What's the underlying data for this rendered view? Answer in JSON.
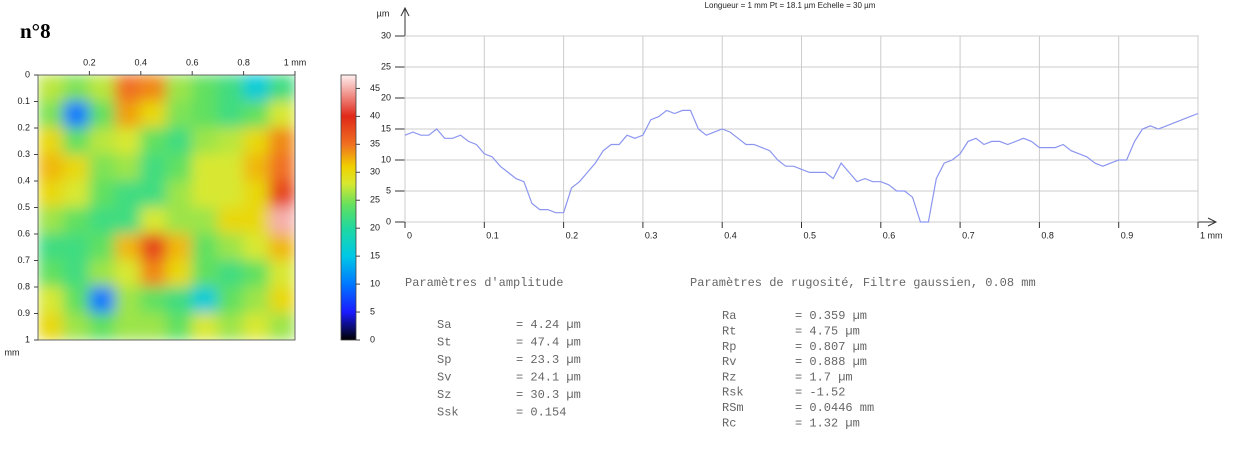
{
  "label": "n°8",
  "chart_data": [
    {
      "type": "heatmap",
      "xlim": [
        0,
        1
      ],
      "ylim": [
        0,
        1
      ],
      "xticks": [
        0.2,
        0.4,
        0.6,
        0.8,
        {
          "value": 1,
          "label": "1 mm"
        }
      ],
      "yticks": [
        0,
        0.1,
        0.2,
        0.3,
        0.4,
        0.5,
        0.6,
        0.7,
        0.8,
        0.9,
        1
      ],
      "ylabel": "mm",
      "zlim": [
        0,
        47.4
      ],
      "zticks": [
        0,
        5,
        10,
        15,
        20,
        25,
        30,
        35,
        40,
        45
      ],
      "colorscale": [
        [
          0,
          "#000000"
        ],
        [
          5,
          "#1a1aff"
        ],
        [
          10,
          "#0078ff"
        ],
        [
          15,
          "#00c8e6"
        ],
        [
          20,
          "#20d8a0"
        ],
        [
          24,
          "#60e060"
        ],
        [
          28,
          "#d8e830"
        ],
        [
          31,
          "#f0d000"
        ],
        [
          35,
          "#f07020"
        ],
        [
          40,
          "#e02818"
        ],
        [
          47.4,
          "#fff0f0"
        ]
      ],
      "z": [
        [
          27,
          25,
          27,
          35,
          34,
          26,
          24,
          22,
          16,
          22
        ],
        [
          25,
          10,
          24,
          33,
          30,
          25,
          24,
          22,
          24,
          28
        ],
        [
          30,
          24,
          27,
          28,
          24,
          22,
          26,
          27,
          30,
          34
        ],
        [
          32,
          30,
          25,
          26,
          22,
          24,
          28,
          28,
          32,
          35
        ],
        [
          30,
          28,
          24,
          22,
          22,
          26,
          28,
          28,
          30,
          38
        ],
        [
          26,
          24,
          22,
          22,
          28,
          26,
          26,
          30,
          30,
          45
        ],
        [
          22,
          22,
          24,
          32,
          38,
          32,
          24,
          26,
          28,
          32
        ],
        [
          24,
          22,
          26,
          28,
          34,
          30,
          24,
          22,
          24,
          28
        ],
        [
          28,
          24,
          10,
          26,
          24,
          22,
          16,
          24,
          26,
          30
        ],
        [
          30,
          26,
          24,
          26,
          26,
          24,
          28,
          26,
          28,
          26
        ]
      ]
    },
    {
      "type": "line",
      "title": "Longueur = 1 mm  Pt = 18.1 µm  Echelle = 30 µm",
      "ylabel": "µm",
      "xlim": [
        0,
        1
      ],
      "ylim": [
        0,
        30
      ],
      "xticks": [
        0,
        0.1,
        0.2,
        0.3,
        0.4,
        0.5,
        0.6,
        0.7,
        0.8,
        0.9,
        {
          "value": 1,
          "label": "1 mm"
        }
      ],
      "yticks": [
        0,
        5,
        10,
        15,
        20,
        25,
        30
      ],
      "grid": true,
      "color": "#8c96f0",
      "x": [
        0,
        0.01,
        0.02,
        0.03,
        0.04,
        0.05,
        0.06,
        0.07,
        0.08,
        0.09,
        0.1,
        0.11,
        0.12,
        0.13,
        0.14,
        0.15,
        0.16,
        0.17,
        0.18,
        0.19,
        0.2,
        0.21,
        0.22,
        0.23,
        0.24,
        0.25,
        0.26,
        0.27,
        0.28,
        0.29,
        0.3,
        0.31,
        0.32,
        0.33,
        0.34,
        0.35,
        0.36,
        0.37,
        0.38,
        0.39,
        0.4,
        0.41,
        0.42,
        0.43,
        0.44,
        0.45,
        0.46,
        0.47,
        0.48,
        0.49,
        0.5,
        0.51,
        0.52,
        0.53,
        0.54,
        0.55,
        0.56,
        0.57,
        0.58,
        0.59,
        0.6,
        0.61,
        0.62,
        0.63,
        0.64,
        0.65,
        0.66,
        0.67,
        0.68,
        0.69,
        0.7,
        0.71,
        0.72,
        0.73,
        0.74,
        0.75,
        0.76,
        0.77,
        0.78,
        0.79,
        0.8,
        0.81,
        0.82,
        0.83,
        0.84,
        0.85,
        0.86,
        0.87,
        0.88,
        0.89,
        0.9,
        0.91,
        0.92,
        0.93,
        0.94,
        0.95,
        0.96,
        0.97,
        0.98,
        0.99,
        1
      ],
      "values": [
        14,
        14.5,
        14,
        14,
        15,
        13.5,
        13.5,
        14,
        13,
        12.5,
        11,
        10.5,
        9,
        8,
        7,
        6.5,
        3,
        2,
        2,
        1.5,
        1.5,
        5.5,
        6.5,
        8,
        9.5,
        11.5,
        12.5,
        12.5,
        14,
        13.5,
        14,
        16.5,
        17,
        18,
        17.5,
        18,
        18,
        15,
        14,
        14.5,
        15,
        14.5,
        13.5,
        12.5,
        12.5,
        12,
        11.5,
        10,
        9,
        9,
        8.5,
        8,
        8,
        8,
        7,
        9.5,
        8,
        6.5,
        7,
        6.5,
        6.5,
        6,
        5,
        5,
        4,
        0,
        0,
        7,
        9.5,
        10,
        11,
        13,
        13.5,
        12.5,
        13,
        13,
        12.5,
        13,
        13.5,
        13,
        12,
        12,
        12,
        12.5,
        11.5,
        11,
        10.5,
        9.5,
        9,
        9.5,
        10,
        10,
        13,
        15,
        15.5,
        15,
        15.5,
        16,
        16.5,
        17,
        17.5
      ]
    }
  ],
  "amplitude": {
    "title": "Paramètres d'amplitude",
    "rows": [
      [
        "Sa",
        "= 4.24 µm"
      ],
      [
        "St",
        "= 47.4 µm"
      ],
      [
        "Sp",
        "= 23.3 µm"
      ],
      [
        "Sv",
        "= 24.1 µm"
      ],
      [
        "Sz",
        "= 30.3 µm"
      ],
      [
        "Ssk",
        "= 0.154"
      ]
    ]
  },
  "roughness": {
    "title": "Paramètres de rugosité, Filtre gaussien, 0.08 mm",
    "rows": [
      [
        "Ra",
        "= 0.359 µm"
      ],
      [
        "Rt",
        "= 4.75 µm"
      ],
      [
        "Rp",
        "= 0.807 µm"
      ],
      [
        "Rv",
        "= 0.888 µm"
      ],
      [
        "Rz",
        "= 1.7 µm"
      ],
      [
        "Rsk",
        "= -1.52"
      ],
      [
        "RSm",
        "= 0.0446 mm"
      ],
      [
        "Rc",
        "= 1.32 µm"
      ]
    ]
  }
}
